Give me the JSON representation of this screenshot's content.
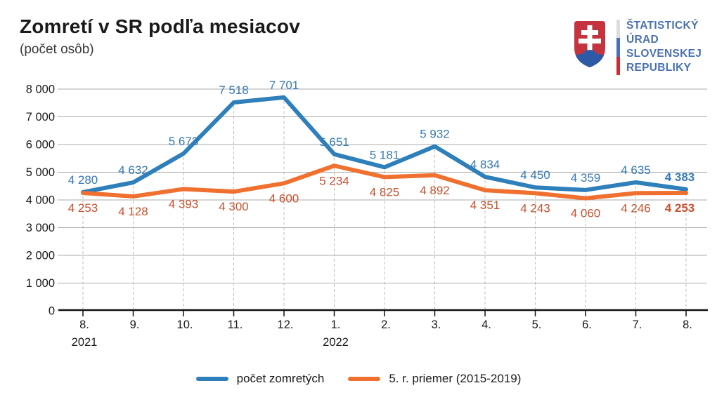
{
  "page": {
    "title": "Zomretí v SR podľa mesiacov",
    "subtitle": "(počet osôb)"
  },
  "logo": {
    "org_lines": [
      "ŠTATISTICKÝ",
      "ÚRAD",
      "SLOVENSKEJ",
      "REPUBLIKY"
    ],
    "text_color": "#4A72B2",
    "shield_red": "#C4333E",
    "shield_blue": "#2C5AA5",
    "cross_white": "#FFFFFF",
    "flag_colors": [
      "#DCDCDC",
      "#4A72B2",
      "#CE2B37"
    ]
  },
  "chart_data": {
    "type": "line",
    "title": "Zomretí v SR podľa mesiacov",
    "subtitle": "(počet osôb)",
    "x": [
      "8.",
      "9.",
      "10.",
      "11.",
      "12.",
      "1.",
      "2.",
      "3.",
      "4.",
      "5.",
      "6.",
      "7.",
      "8."
    ],
    "x_years": [
      {
        "index": 0,
        "label": "2021"
      },
      {
        "index": 5,
        "label": "2022"
      }
    ],
    "series": [
      {
        "name": "počet zomretých",
        "color": "#2E7FBA",
        "label_color": "#3579B4",
        "values": [
          4280,
          4632,
          5673,
          7518,
          7701,
          5651,
          5181,
          5932,
          4834,
          4450,
          4359,
          4635,
          4383
        ]
      },
      {
        "name": "5. r. priemer (2015-2019)",
        "color": "#F07030",
        "label_color": "#C8512E",
        "values": [
          4253,
          4128,
          4393,
          4300,
          4600,
          5234,
          4825,
          4892,
          4351,
          4243,
          4060,
          4246,
          4253
        ]
      }
    ],
    "ylim": [
      0,
      8000
    ],
    "ytick_step": 1000,
    "ytick_labels": [
      "0",
      "1 000",
      "2 000",
      "3 000",
      "4 000",
      "5 000",
      "6 000",
      "7 000",
      "8 000"
    ],
    "grid": "horizontal solid gray, vertical dashed drop-lines at each month",
    "legend_position": "bottom",
    "last_point_labels_bold": true
  }
}
